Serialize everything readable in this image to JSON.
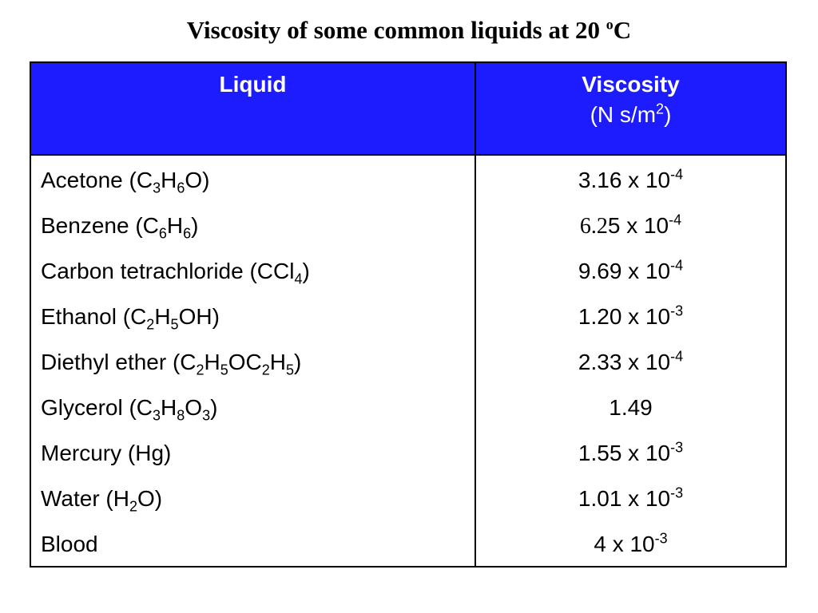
{
  "title": [
    {
      "text": "Viscosity of some common liquids at 20 "
    },
    {
      "text": "o",
      "script": "sup"
    },
    {
      "text": "C"
    }
  ],
  "table": {
    "header": [
      [
        [
          {
            "text": "Liquid"
          }
        ]
      ],
      [
        [
          {
            "text": "Viscosity"
          }
        ],
        [
          {
            "text": "(N s/m"
          },
          {
            "text": "2",
            "script": "sup"
          },
          {
            "text": ")"
          }
        ]
      ]
    ],
    "rows": [
      [
        [
          {
            "text": "Acetone (C"
          },
          {
            "text": "3",
            "script": "sub"
          },
          {
            "text": "H"
          },
          {
            "text": "6",
            "script": "sub"
          },
          {
            "text": "O)"
          }
        ],
        [
          {
            "text": "3.16 x 10"
          },
          {
            "text": "-4",
            "script": "sup"
          }
        ]
      ],
      [
        [
          {
            "text": "Benzene (C"
          },
          {
            "text": "6",
            "script": "sub"
          },
          {
            "text": "H"
          },
          {
            "text": "6",
            "script": "sub"
          },
          {
            "text": ")"
          }
        ],
        [
          {
            "text": "6.2",
            "font": "serif"
          },
          {
            "text": "5 x 10"
          },
          {
            "text": "-4",
            "script": "sup"
          }
        ]
      ],
      [
        [
          {
            "text": "Carbon tetrachloride (CCl"
          },
          {
            "text": "4",
            "script": "sub"
          },
          {
            "text": ")"
          }
        ],
        [
          {
            "text": "9.69 x 10"
          },
          {
            "text": "-4",
            "script": "sup"
          }
        ]
      ],
      [
        [
          {
            "text": "Ethanol (C"
          },
          {
            "text": "2",
            "script": "sub"
          },
          {
            "text": "H"
          },
          {
            "text": "5",
            "script": "sub"
          },
          {
            "text": "OH)"
          }
        ],
        [
          {
            "text": "1.20 x 10"
          },
          {
            "text": "-3",
            "script": "sup"
          }
        ]
      ],
      [
        [
          {
            "text": "Diethyl ether (C"
          },
          {
            "text": "2",
            "script": "sub"
          },
          {
            "text": "H"
          },
          {
            "text": "5",
            "script": "sub"
          },
          {
            "text": "OC"
          },
          {
            "text": "2",
            "script": "sub"
          },
          {
            "text": "H"
          },
          {
            "text": "5",
            "script": "sub"
          },
          {
            "text": ")"
          }
        ],
        [
          {
            "text": "2.33 x 10"
          },
          {
            "text": "-4",
            "script": "sup"
          }
        ]
      ],
      [
        [
          {
            "text": "Glycerol (C"
          },
          {
            "text": "3",
            "script": "sub"
          },
          {
            "text": "H"
          },
          {
            "text": "8",
            "script": "sub"
          },
          {
            "text": "O"
          },
          {
            "text": "3",
            "script": "sub"
          },
          {
            "text": ")"
          }
        ],
        [
          {
            "text": "1.49"
          }
        ]
      ],
      [
        [
          {
            "text": "Mercury (Hg)"
          }
        ],
        [
          {
            "text": "1.55 x 10"
          },
          {
            "text": "-3",
            "script": "sup"
          }
        ]
      ],
      [
        [
          {
            "text": "Water (H"
          },
          {
            "text": "2",
            "script": "sub"
          },
          {
            "text": "O)"
          }
        ],
        [
          {
            "text": "1.01 x 10"
          },
          {
            "text": "-3",
            "script": "sup"
          }
        ]
      ],
      [
        [
          {
            "text": "Blood"
          }
        ],
        [
          {
            "text": "4 x 10"
          },
          {
            "text": "-3",
            "script": "sup"
          }
        ]
      ]
    ]
  }
}
